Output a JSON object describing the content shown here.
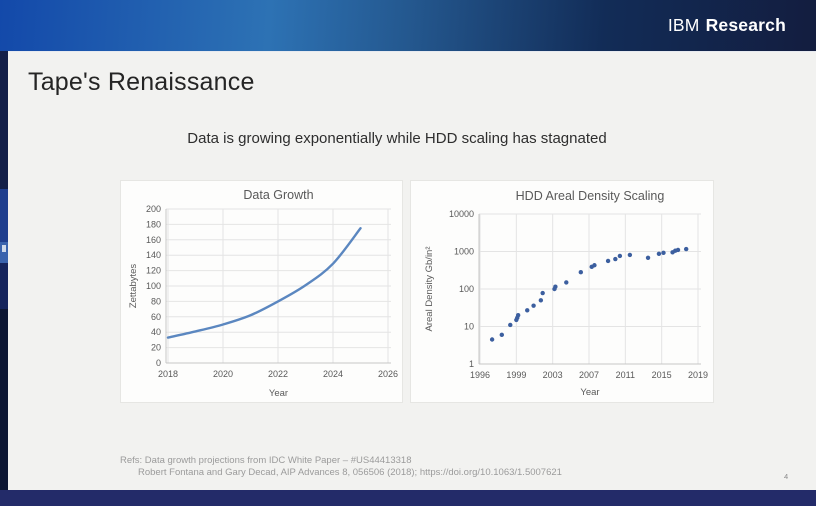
{
  "header": {
    "brand_ibm": "IBM",
    "brand_research": "Research"
  },
  "slide": {
    "title": "Tape's Renaissance",
    "subtitle": "Data is growing exponentially while HDD scaling has stagnated",
    "page_number": "4",
    "refs_line1": "Refs: Data growth projections from IDC White Paper – #US44413318",
    "refs_line2": "Robert Fontana and Gary Decad, AIP Advances 8, 056506 (2018); https://doi.org/10.1063/1.5007621"
  },
  "colors": {
    "header_blue_left": "#1349aa",
    "header_navy_right": "#131d3f",
    "bottom_bar": "#232b69",
    "slide_bg": "#f2f2f0",
    "panel_bg": "#fdfdfc",
    "line_series": "#5b87c0",
    "scatter_series": "#3c5f9f",
    "chart_text": "#595959",
    "gridline": "#e4e4e4"
  },
  "chart_data": [
    {
      "type": "line",
      "title": "Data Growth",
      "xlabel": "Year",
      "ylabel": "Zettabytes",
      "x": [
        2018,
        2019,
        2020,
        2021,
        2022,
        2023,
        2024,
        2025
      ],
      "values": [
        33,
        41,
        50,
        62,
        80,
        101,
        129,
        175
      ],
      "xticks": [
        2018,
        2020,
        2022,
        2024,
        2026
      ],
      "yticks": [
        0,
        20,
        40,
        60,
        80,
        100,
        120,
        140,
        160,
        180,
        200
      ],
      "ylim": [
        0,
        200
      ],
      "yscale": "linear",
      "grid": true,
      "legend": false,
      "line_color": "#5b87c0"
    },
    {
      "type": "scatter",
      "title": "HDD Areal Density Scaling",
      "xlabel": "Year",
      "ylabel": "Areal Density Gb/in²",
      "points": [
        [
          1997.0,
          4.5
        ],
        [
          1997.8,
          6
        ],
        [
          1998.5,
          11
        ],
        [
          1999.0,
          15
        ],
        [
          1999.1,
          17
        ],
        [
          1999.2,
          20
        ],
        [
          2000.2,
          27
        ],
        [
          2000.9,
          36
        ],
        [
          2001.7,
          50
        ],
        [
          2001.9,
          78
        ],
        [
          2003.2,
          100
        ],
        [
          2003.3,
          115
        ],
        [
          2004.5,
          150
        ],
        [
          2006.1,
          280
        ],
        [
          2007.3,
          390
        ],
        [
          2007.6,
          430
        ],
        [
          2009.1,
          560
        ],
        [
          2009.9,
          630
        ],
        [
          2010.4,
          760
        ],
        [
          2011.5,
          810
        ],
        [
          2013.5,
          680
        ],
        [
          2014.7,
          870
        ],
        [
          2015.2,
          920
        ],
        [
          2016.2,
          950
        ],
        [
          2016.5,
          1050
        ],
        [
          2016.8,
          1100
        ],
        [
          2017.7,
          1160
        ]
      ],
      "xticks": [
        1996,
        1999,
        2003,
        2007,
        2011,
        2015,
        2019
      ],
      "yticks": [
        1,
        10,
        100,
        1000,
        10000
      ],
      "ylim": [
        1,
        10000
      ],
      "yscale": "log",
      "grid": true,
      "legend": false,
      "marker_color": "#3c5f9f"
    }
  ]
}
